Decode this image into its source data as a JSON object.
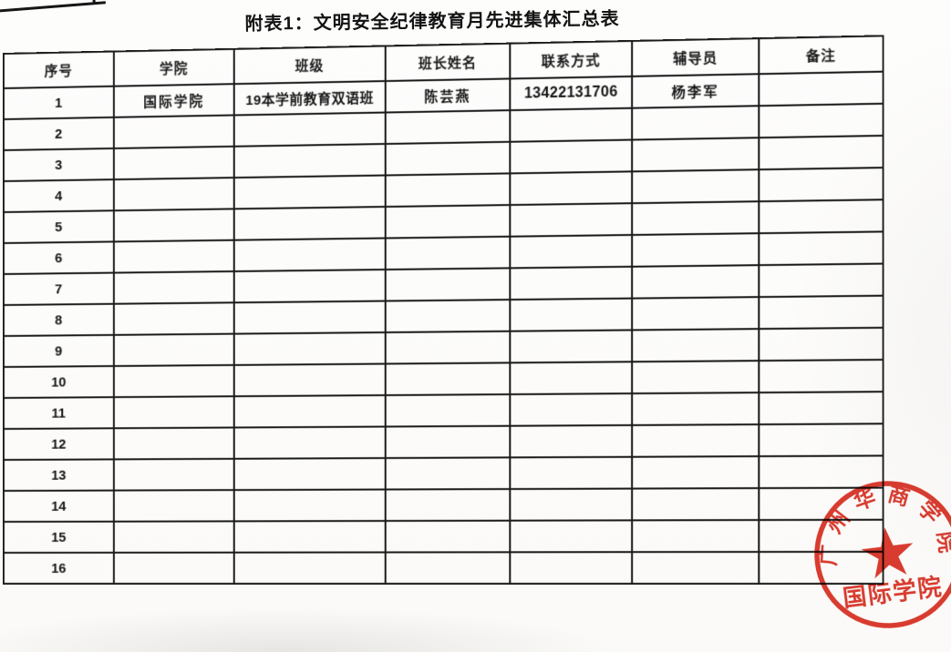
{
  "page": {
    "title": "附表1：文明安全纪律教育月先进集体汇总表"
  },
  "table": {
    "headers": [
      "序号",
      "学院",
      "班级",
      "班长姓名",
      "联系方式",
      "辅导员",
      "备注"
    ],
    "rows": [
      [
        "1",
        "国际学院",
        "19本学前教育双语班",
        "陈芸燕",
        "13422131706",
        "杨李军",
        ""
      ],
      [
        "2",
        "",
        "",
        "",
        "",
        "",
        ""
      ],
      [
        "3",
        "",
        "",
        "",
        "",
        "",
        ""
      ],
      [
        "4",
        "",
        "",
        "",
        "",
        "",
        ""
      ],
      [
        "5",
        "",
        "",
        "",
        "",
        "",
        ""
      ],
      [
        "6",
        "",
        "",
        "",
        "",
        "",
        ""
      ],
      [
        "7",
        "",
        "",
        "",
        "",
        "",
        ""
      ],
      [
        "8",
        "",
        "",
        "",
        "",
        "",
        ""
      ],
      [
        "9",
        "",
        "",
        "",
        "",
        "",
        ""
      ],
      [
        "10",
        "",
        "",
        "",
        "",
        "",
        ""
      ],
      [
        "11",
        "",
        "",
        "",
        "",
        "",
        ""
      ],
      [
        "12",
        "",
        "",
        "",
        "",
        "",
        ""
      ],
      [
        "13",
        "",
        "",
        "",
        "",
        "",
        ""
      ],
      [
        "14",
        "",
        "",
        "",
        "",
        "",
        ""
      ],
      [
        "15",
        "",
        "",
        "",
        "",
        "",
        ""
      ],
      [
        "16",
        "",
        "",
        "",
        "",
        "",
        ""
      ]
    ]
  },
  "stamp": {
    "ring_text": "广州华商学院",
    "center_text": "国际学院",
    "icon": "star-icon"
  },
  "colors": {
    "ink": "#1a1a1a",
    "stamp_red": "#d92a1d",
    "paper": "#fcfcfa"
  }
}
